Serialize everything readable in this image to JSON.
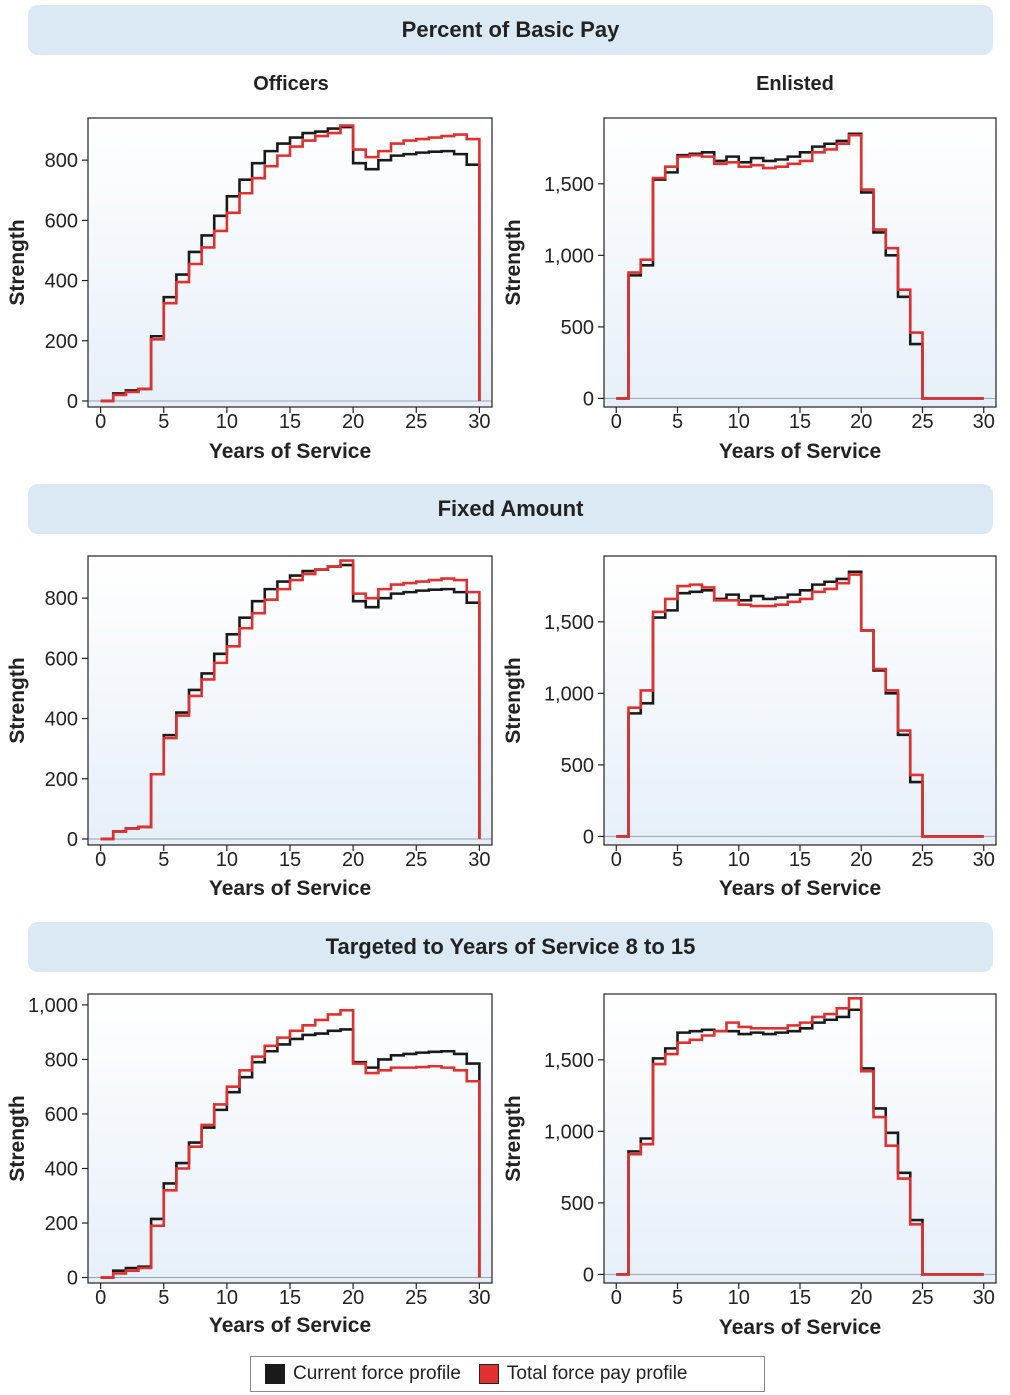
{
  "sections": [
    {
      "title": "Percent of Basic Pay"
    },
    {
      "title": "Fixed Amount"
    },
    {
      "title": "Targeted to Years of Service 8 to 15"
    }
  ],
  "column_titles": {
    "left": "Officers",
    "right": "Enlisted"
  },
  "legend": {
    "current": {
      "label": "Current force profile",
      "color": "#1a1a1a"
    },
    "total": {
      "label": "Total force pay profile",
      "color": "#e03030"
    }
  },
  "chart_data": [
    {
      "type": "line",
      "section": "Percent of Basic Pay",
      "group": "Officers",
      "xlabel": "Years of Service",
      "ylabel": "Strength",
      "xlim": [
        -1,
        31
      ],
      "ylim": [
        -20,
        940
      ],
      "xticks": [
        0,
        5,
        10,
        15,
        20,
        25,
        30
      ],
      "yticks": [
        0,
        200,
        400,
        600,
        800
      ],
      "ytick_labels": [
        "0",
        "200",
        "400",
        "600",
        "800"
      ],
      "x": [
        0,
        1,
        2,
        3,
        4,
        5,
        6,
        7,
        8,
        9,
        10,
        11,
        12,
        13,
        14,
        15,
        16,
        17,
        18,
        19,
        20,
        21,
        22,
        23,
        24,
        25,
        26,
        27,
        28,
        29,
        30
      ],
      "series": [
        {
          "name": "Current force profile",
          "values": [
            0,
            25,
            35,
            40,
            215,
            345,
            420,
            495,
            550,
            615,
            680,
            735,
            790,
            830,
            855,
            875,
            890,
            895,
            905,
            910,
            790,
            770,
            800,
            815,
            820,
            825,
            828,
            830,
            820,
            785,
            0
          ]
        },
        {
          "name": "Total force pay profile",
          "values": [
            0,
            20,
            30,
            40,
            205,
            325,
            395,
            455,
            510,
            565,
            625,
            690,
            740,
            780,
            815,
            845,
            865,
            880,
            890,
            915,
            835,
            810,
            830,
            855,
            865,
            870,
            875,
            880,
            885,
            870,
            0
          ]
        }
      ]
    },
    {
      "type": "line",
      "section": "Percent of Basic Pay",
      "group": "Enlisted",
      "xlabel": "Years of Service",
      "ylabel": "Strength",
      "xlim": [
        -1,
        31
      ],
      "ylim": [
        -60,
        1960
      ],
      "xticks": [
        0,
        5,
        10,
        15,
        20,
        25,
        30
      ],
      "yticks": [
        0,
        500,
        1000,
        1500
      ],
      "ytick_labels": [
        "0",
        "500",
        "1,000",
        "1,500"
      ],
      "x": [
        0,
        1,
        2,
        3,
        4,
        5,
        6,
        7,
        8,
        9,
        10,
        11,
        12,
        13,
        14,
        15,
        16,
        17,
        18,
        19,
        20,
        21,
        22,
        23,
        24,
        25,
        26,
        27,
        28,
        29,
        30
      ],
      "series": [
        {
          "name": "Current force profile",
          "values": [
            0,
            860,
            930,
            1530,
            1580,
            1700,
            1710,
            1720,
            1660,
            1690,
            1650,
            1680,
            1660,
            1670,
            1690,
            1720,
            1760,
            1780,
            1800,
            1850,
            1440,
            1160,
            1000,
            710,
            380,
            0,
            0,
            0,
            0,
            0,
            0
          ]
        },
        {
          "name": "Total force pay profile",
          "values": [
            0,
            880,
            970,
            1540,
            1620,
            1690,
            1700,
            1690,
            1640,
            1650,
            1620,
            1630,
            1610,
            1620,
            1640,
            1660,
            1720,
            1740,
            1780,
            1840,
            1460,
            1180,
            1050,
            760,
            460,
            0,
            0,
            0,
            0,
            0,
            0
          ]
        }
      ]
    },
    {
      "type": "line",
      "section": "Fixed Amount",
      "group": "Officers",
      "xlabel": "Years of Service",
      "ylabel": "Strength",
      "xlim": [
        -1,
        31
      ],
      "ylim": [
        -20,
        940
      ],
      "xticks": [
        0,
        5,
        10,
        15,
        20,
        25,
        30
      ],
      "yticks": [
        0,
        200,
        400,
        600,
        800
      ],
      "ytick_labels": [
        "0",
        "200",
        "400",
        "600",
        "800"
      ],
      "x": [
        0,
        1,
        2,
        3,
        4,
        5,
        6,
        7,
        8,
        9,
        10,
        11,
        12,
        13,
        14,
        15,
        16,
        17,
        18,
        19,
        20,
        21,
        22,
        23,
        24,
        25,
        26,
        27,
        28,
        29,
        30
      ],
      "series": [
        {
          "name": "Current force profile",
          "values": [
            0,
            25,
            35,
            40,
            215,
            345,
            420,
            495,
            550,
            615,
            680,
            735,
            790,
            830,
            855,
            875,
            890,
            895,
            905,
            910,
            790,
            770,
            800,
            815,
            820,
            825,
            828,
            830,
            820,
            785,
            0
          ]
        },
        {
          "name": "Total force pay profile",
          "values": [
            0,
            25,
            35,
            40,
            215,
            335,
            410,
            475,
            530,
            585,
            640,
            700,
            750,
            795,
            830,
            860,
            880,
            895,
            905,
            925,
            815,
            800,
            830,
            845,
            850,
            855,
            860,
            865,
            860,
            820,
            0
          ]
        }
      ]
    },
    {
      "type": "line",
      "section": "Fixed Amount",
      "group": "Enlisted",
      "xlabel": "Years of Service",
      "ylabel": "Strength",
      "xlim": [
        -1,
        31
      ],
      "ylim": [
        -60,
        1960
      ],
      "xticks": [
        0,
        5,
        10,
        15,
        20,
        25,
        30
      ],
      "yticks": [
        0,
        500,
        1000,
        1500
      ],
      "ytick_labels": [
        "0",
        "500",
        "1,000",
        "1,500"
      ],
      "x": [
        0,
        1,
        2,
        3,
        4,
        5,
        6,
        7,
        8,
        9,
        10,
        11,
        12,
        13,
        14,
        15,
        16,
        17,
        18,
        19,
        20,
        21,
        22,
        23,
        24,
        25,
        26,
        27,
        28,
        29,
        30
      ],
      "series": [
        {
          "name": "Current force profile",
          "values": [
            0,
            860,
            930,
            1530,
            1580,
            1700,
            1710,
            1720,
            1660,
            1690,
            1650,
            1680,
            1660,
            1670,
            1690,
            1720,
            1760,
            1780,
            1800,
            1850,
            1440,
            1160,
            1000,
            710,
            380,
            0,
            0,
            0,
            0,
            0,
            0
          ]
        },
        {
          "name": "Total force pay profile",
          "values": [
            0,
            900,
            1020,
            1570,
            1660,
            1750,
            1760,
            1740,
            1650,
            1650,
            1620,
            1610,
            1610,
            1620,
            1640,
            1660,
            1710,
            1730,
            1770,
            1830,
            1440,
            1170,
            1020,
            740,
            430,
            0,
            0,
            0,
            0,
            0,
            0
          ]
        }
      ]
    },
    {
      "type": "line",
      "section": "Targeted to Years of Service 8 to 15",
      "group": "Officers",
      "xlabel": "Years of Service",
      "ylabel": "Strength",
      "xlim": [
        -1,
        31
      ],
      "ylim": [
        -20,
        1040
      ],
      "xticks": [
        0,
        5,
        10,
        15,
        20,
        25,
        30
      ],
      "yticks": [
        0,
        200,
        400,
        600,
        800,
        1000
      ],
      "ytick_labels": [
        "0",
        "200",
        "400",
        "600",
        "800",
        "1,000"
      ],
      "x": [
        0,
        1,
        2,
        3,
        4,
        5,
        6,
        7,
        8,
        9,
        10,
        11,
        12,
        13,
        14,
        15,
        16,
        17,
        18,
        19,
        20,
        21,
        22,
        23,
        24,
        25,
        26,
        27,
        28,
        29,
        30
      ],
      "series": [
        {
          "name": "Current force profile",
          "values": [
            0,
            25,
            35,
            40,
            215,
            345,
            420,
            495,
            550,
            615,
            680,
            735,
            790,
            830,
            855,
            875,
            890,
            895,
            905,
            910,
            790,
            770,
            800,
            815,
            820,
            825,
            828,
            830,
            820,
            785,
            0
          ]
        },
        {
          "name": "Total force pay profile",
          "values": [
            0,
            15,
            25,
            35,
            190,
            320,
            400,
            480,
            560,
            635,
            700,
            760,
            810,
            850,
            880,
            905,
            925,
            945,
            965,
            980,
            785,
            750,
            760,
            770,
            770,
            772,
            775,
            770,
            760,
            720,
            0
          ]
        }
      ]
    },
    {
      "type": "line",
      "section": "Targeted to Years of Service 8 to 15",
      "group": "Enlisted",
      "xlabel": "Years of Service",
      "ylabel": "Strength",
      "xlim": [
        -1,
        31
      ],
      "ylim": [
        -60,
        1960
      ],
      "xticks": [
        0,
        5,
        10,
        15,
        20,
        25,
        30
      ],
      "yticks": [
        0,
        500,
        1000,
        1500
      ],
      "ytick_labels": [
        "0",
        "500",
        "1,000",
        "1,500"
      ],
      "x": [
        0,
        1,
        2,
        3,
        4,
        5,
        6,
        7,
        8,
        9,
        10,
        11,
        12,
        13,
        14,
        15,
        16,
        17,
        18,
        19,
        20,
        21,
        22,
        23,
        24,
        25,
        26,
        27,
        28,
        29,
        30
      ],
      "series": [
        {
          "name": "Current force profile",
          "values": [
            0,
            860,
            950,
            1510,
            1580,
            1690,
            1700,
            1710,
            1700,
            1700,
            1680,
            1690,
            1680,
            1690,
            1700,
            1720,
            1760,
            1780,
            1800,
            1850,
            1440,
            1160,
            990,
            710,
            380,
            0,
            0,
            0,
            0,
            0,
            0
          ]
        },
        {
          "name": "Total force pay profile",
          "values": [
            0,
            840,
            910,
            1470,
            1540,
            1620,
            1640,
            1670,
            1700,
            1760,
            1730,
            1720,
            1720,
            1720,
            1740,
            1760,
            1800,
            1820,
            1860,
            1930,
            1420,
            1100,
            900,
            670,
            350,
            0,
            0,
            0,
            0,
            0,
            0
          ]
        }
      ]
    }
  ]
}
